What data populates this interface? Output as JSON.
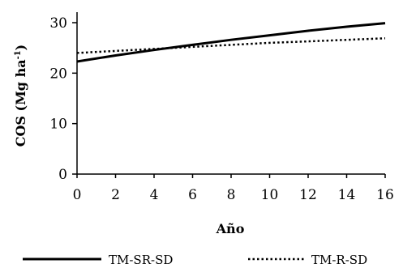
{
  "chart_data": {
    "type": "line",
    "xlabel": "Año",
    "ylabel_main": "COS (Mg ha",
    "ylabel_sup": "-1",
    "ylabel_close": ")",
    "xlim": [
      0,
      16
    ],
    "ylim": [
      0,
      30
    ],
    "x_ticks": [
      "0",
      "2",
      "4",
      "6",
      "8",
      "10",
      "12",
      "14",
      "16"
    ],
    "y_ticks": [
      "0",
      "10",
      "20",
      "30"
    ],
    "x": [
      0,
      2,
      4,
      6,
      8,
      10,
      12,
      14,
      16
    ],
    "series": [
      {
        "name": "TM-SR-SD",
        "style": "solid",
        "values": [
          22.3,
          23.5,
          24.6,
          25.6,
          26.6,
          27.5,
          28.4,
          29.2,
          29.9
        ]
      },
      {
        "name": "TM-R-SD",
        "style": "dotted",
        "values": [
          24.0,
          24.4,
          24.8,
          25.2,
          25.6,
          26.0,
          26.3,
          26.6,
          26.9
        ]
      }
    ],
    "grid": false,
    "legend_position": "bottom",
    "colors": {
      "line": "#000000",
      "axis": "#000000"
    }
  }
}
